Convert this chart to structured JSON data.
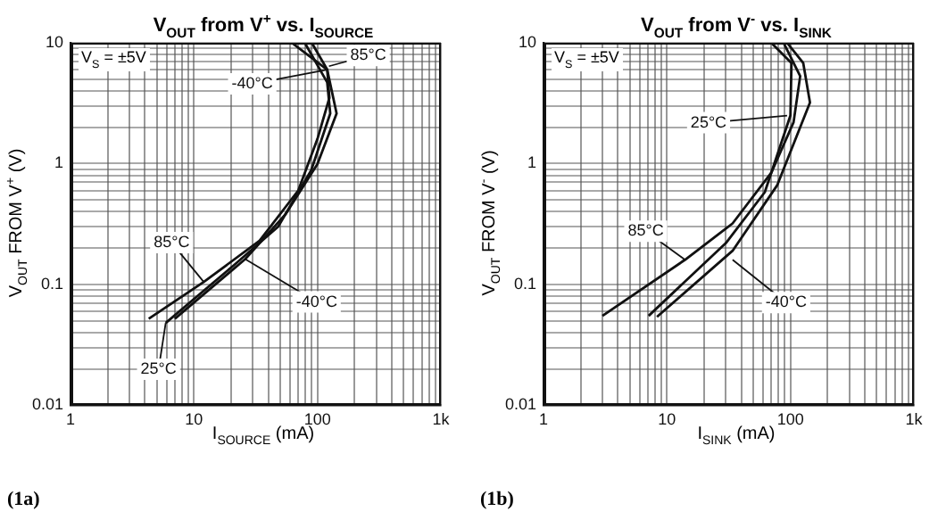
{
  "chart_data": [
    {
      "type": "line",
      "title": "V$_{OUT}$ from V$^{+}$ vs. I$_{SOURCE}$",
      "xlabel": "I$_{SOURCE}$ (mA)",
      "ylabel": "V$_{OUT}$ FROM V$^{+}$ (V)",
      "log": "xy",
      "grid": true,
      "marker": "none",
      "xlim": [
        1,
        1000
      ],
      "ylim": [
        0.01,
        10
      ],
      "xticks": [
        1,
        {
          "value": 2,
          "label": null
        },
        {
          "value": 3,
          "label": null
        },
        {
          "value": 4,
          "label": null
        },
        {
          "value": 5,
          "label": null
        },
        {
          "value": 6,
          "label": null
        },
        {
          "value": 7,
          "label": null
        },
        {
          "value": 8,
          "label": null
        },
        {
          "value": 9,
          "label": null
        },
        10,
        {
          "value": 20,
          "label": null
        },
        {
          "value": 30,
          "label": null
        },
        {
          "value": 40,
          "label": null
        },
        {
          "value": 50,
          "label": null
        },
        {
          "value": 60,
          "label": null
        },
        {
          "value": 70,
          "label": null
        },
        {
          "value": 80,
          "label": null
        },
        {
          "value": 90,
          "label": null
        },
        100,
        {
          "value": 200,
          "label": null
        },
        {
          "value": 300,
          "label": null
        },
        {
          "value": 400,
          "label": null
        },
        {
          "value": 500,
          "label": null
        },
        {
          "value": 600,
          "label": null
        },
        {
          "value": 700,
          "label": null
        },
        {
          "value": 800,
          "label": null
        },
        {
          "value": 900,
          "label": null
        },
        {
          "value": 1000,
          "label": "1k"
        }
      ],
      "yticks": [
        0.01,
        {
          "value": 0.02,
          "label": null
        },
        {
          "value": 0.03,
          "label": null
        },
        {
          "value": 0.04,
          "label": null
        },
        {
          "value": 0.05,
          "label": null
        },
        {
          "value": 0.06,
          "label": null
        },
        {
          "value": 0.07,
          "label": null
        },
        {
          "value": 0.08,
          "label": null
        },
        {
          "value": 0.09,
          "label": null
        },
        0.1,
        {
          "value": 0.2,
          "label": null
        },
        {
          "value": 0.3,
          "label": null
        },
        {
          "value": 0.4,
          "label": null
        },
        {
          "value": 0.5,
          "label": null
        },
        {
          "value": 0.6,
          "label": null
        },
        {
          "value": 0.7,
          "label": null
        },
        {
          "value": 0.8,
          "label": null
        },
        {
          "value": 0.9,
          "label": null
        },
        1,
        {
          "value": 2,
          "label": null
        },
        {
          "value": 3,
          "label": null
        },
        {
          "value": 4,
          "label": null
        },
        {
          "value": 5,
          "label": null
        },
        {
          "value": 6,
          "label": null
        },
        {
          "value": 7,
          "label": null
        },
        {
          "value": 8,
          "label": null
        },
        {
          "value": 9,
          "label": null
        },
        10
      ],
      "series": [
        {
          "color": "#111111",
          "x": [
            4.3,
            12,
            34,
            70,
            100,
            125,
            120,
            90
          ],
          "values": [
            0.052,
            0.105,
            0.23,
            0.6,
            1.6,
            3.5,
            6,
            10
          ]
        },
        {
          "color": "#111111",
          "x": [
            5.9,
            21,
            48,
            89,
            127,
            120,
            79
          ],
          "values": [
            0.048,
            0.144,
            0.3,
            0.88,
            2.6,
            4.7,
            10
          ]
        },
        {
          "color": "#111111",
          "x": [
            7,
            26,
            55,
            100,
            143,
            120,
            62
          ],
          "values": [
            0.052,
            0.162,
            0.38,
            0.99,
            2.6,
            6,
            10
          ]
        }
      ],
      "annotations": [
        "V$_{S}$ = ±5V",
        "(1a)",
        {
          "text": "85°C",
          "x": 124,
          "y": 6.4
        },
        {
          "text": "-40°C",
          "x": 120,
          "y": 6
        },
        {
          "text": "85°C",
          "x": 12,
          "y": 0.105
        },
        {
          "text": "-40°C",
          "x": 26,
          "y": 0.162
        },
        {
          "text": "25°C",
          "x": 5.9,
          "y": 0.048
        }
      ]
    },
    {
      "type": "line",
      "title": "V$_{OUT}$ from V$^{-}$ vs. I$_{SINK}$",
      "xlabel": "I$_{SINK}$ (mA)",
      "ylabel": "V$_{OUT}$ FROM V$^{-}$ (V)",
      "log": "xy",
      "grid": true,
      "marker": "none",
      "xlim": [
        1,
        1000
      ],
      "ylim": [
        0.01,
        10
      ],
      "xticks": [
        1,
        {
          "value": 2,
          "label": null
        },
        {
          "value": 3,
          "label": null
        },
        {
          "value": 4,
          "label": null
        },
        {
          "value": 5,
          "label": null
        },
        {
          "value": 6,
          "label": null
        },
        {
          "value": 7,
          "label": null
        },
        {
          "value": 8,
          "label": null
        },
        {
          "value": 9,
          "label": null
        },
        10,
        {
          "value": 20,
          "label": null
        },
        {
          "value": 30,
          "label": null
        },
        {
          "value": 40,
          "label": null
        },
        {
          "value": 50,
          "label": null
        },
        {
          "value": 60,
          "label": null
        },
        {
          "value": 70,
          "label": null
        },
        {
          "value": 80,
          "label": null
        },
        {
          "value": 90,
          "label": null
        },
        100,
        {
          "value": 200,
          "label": null
        },
        {
          "value": 300,
          "label": null
        },
        {
          "value": 400,
          "label": null
        },
        {
          "value": 500,
          "label": null
        },
        {
          "value": 600,
          "label": null
        },
        {
          "value": 700,
          "label": null
        },
        {
          "value": 800,
          "label": null
        },
        {
          "value": 900,
          "label": null
        },
        {
          "value": 1000,
          "label": "1k"
        }
      ],
      "yticks": [
        0.01,
        {
          "value": 0.02,
          "label": null
        },
        {
          "value": 0.03,
          "label": null
        },
        {
          "value": 0.04,
          "label": null
        },
        {
          "value": 0.05,
          "label": null
        },
        {
          "value": 0.06,
          "label": null
        },
        {
          "value": 0.07,
          "label": null
        },
        {
          "value": 0.08,
          "label": null
        },
        {
          "value": 0.09,
          "label": null
        },
        0.1,
        {
          "value": 0.2,
          "label": null
        },
        {
          "value": 0.3,
          "label": null
        },
        {
          "value": 0.4,
          "label": null
        },
        {
          "value": 0.5,
          "label": null
        },
        {
          "value": 0.6,
          "label": null
        },
        {
          "value": 0.7,
          "label": null
        },
        {
          "value": 0.8,
          "label": null
        },
        {
          "value": 0.9,
          "label": null
        },
        1,
        {
          "value": 2,
          "label": null
        },
        {
          "value": 3,
          "label": null
        },
        {
          "value": 4,
          "label": null
        },
        {
          "value": 5,
          "label": null
        },
        {
          "value": 6,
          "label": null
        },
        {
          "value": 7,
          "label": null
        },
        {
          "value": 8,
          "label": null
        },
        {
          "value": 9,
          "label": null
        },
        10
      ],
      "series": [
        {
          "color": "#111111",
          "x": [
            3,
            14,
            34,
            70,
            106,
            120,
            88
          ],
          "values": [
            0.055,
            0.16,
            0.32,
            0.84,
            2.2,
            5.3,
            10
          ]
        },
        {
          "color": "#111111",
          "x": [
            7.1,
            30,
            62,
            100,
            102,
            70
          ],
          "values": [
            0.055,
            0.22,
            0.58,
            2.5,
            6.8,
            10
          ]
        },
        {
          "color": "#111111",
          "x": [
            8.3,
            34,
            78,
            144,
            127,
            94
          ],
          "values": [
            0.054,
            0.19,
            0.66,
            3.2,
            6.8,
            10
          ]
        }
      ],
      "annotations": [
        "V$_{S}$ = ±5V",
        "(1b)",
        {
          "text": "25°C",
          "x": 94,
          "y": 2.5
        },
        {
          "text": "85°C",
          "x": 14,
          "y": 0.16
        },
        {
          "text": "-40°C",
          "x": 34,
          "y": 0.16
        }
      ]
    }
  ]
}
